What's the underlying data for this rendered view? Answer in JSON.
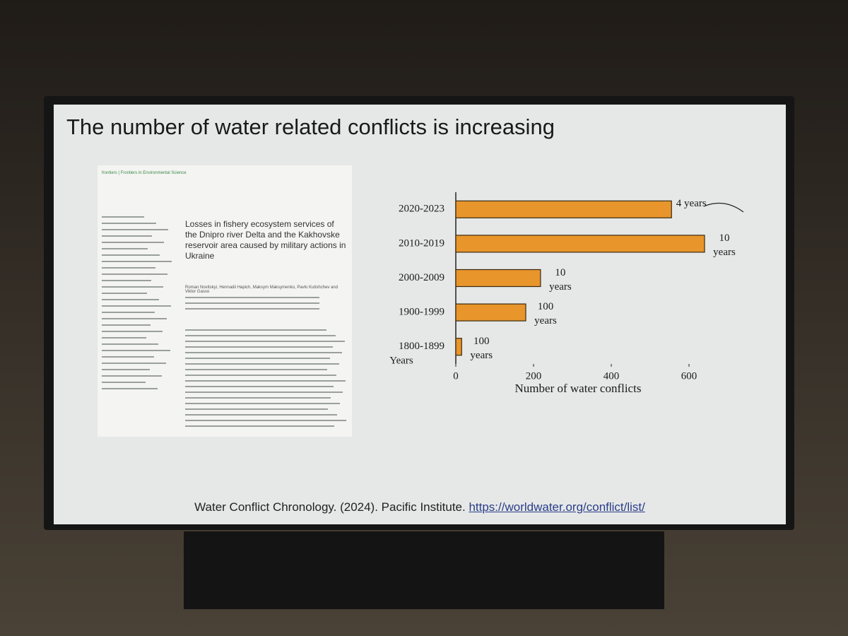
{
  "title": "The number of water related conflicts is increasing",
  "paper": {
    "header": "frontiers | Frontiers in Environmental Science",
    "title": "Losses in fishery ecosystem services of the Dnipro river Delta and the Kakhovske reservoir area caused by military actions in Ukraine",
    "authors": "Roman Novitskyi, Hennadii Hapich, Maksym Maksymenko, Pavlo Kutishchev and Viktor Gasso"
  },
  "chart_data": {
    "type": "bar",
    "orientation": "horizontal",
    "categories": [
      "2020-2023",
      "2010-2019",
      "2000-2009",
      "1900-1999",
      "1800-1899"
    ],
    "values": [
      555,
      640,
      218,
      180,
      15
    ],
    "annotations": [
      "4 years",
      "10 years",
      "10 years",
      "100 years",
      "100 years"
    ],
    "color": "#e8952c",
    "ylabel": "Years",
    "xlabel": "Number of water conflicts",
    "xlim": [
      0,
      660
    ],
    "xticks": [
      0,
      200,
      400,
      600
    ]
  },
  "citation": {
    "text": "Water Conflict Chronology. (2024). Pacific Institute.",
    "link": "https://worldwater.org/conflict/list/"
  }
}
